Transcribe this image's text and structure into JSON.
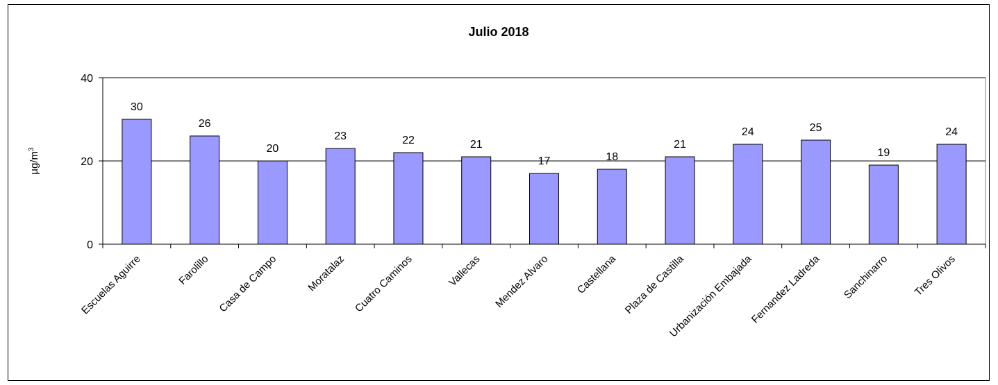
{
  "chart_data": {
    "type": "bar",
    "title": "Julio 2018",
    "xlabel": "",
    "ylabel": "µg/m",
    "ylabel_superscript": "3",
    "ylim": [
      0,
      40
    ],
    "yticks": [
      0,
      20,
      40
    ],
    "grid": "horizontal",
    "legend": "none",
    "categories": [
      "Escuelas Aguirre",
      "Farolillo",
      "Casa de Campo",
      "Moratalaz",
      "Cuatro Caminos",
      "Vallecas",
      "Mendez Alvaro",
      "Castellana",
      "Plaza de Castilla",
      "Urbanización Embajada",
      "Fernandez Ladreda",
      "Sanchinarro",
      "Tres Olivos"
    ],
    "values": [
      30,
      26,
      20,
      23,
      22,
      21,
      17,
      18,
      21,
      24,
      25,
      19,
      24
    ],
    "colors": {
      "bar": "#9999ff",
      "bar_stroke": "#000000"
    }
  }
}
